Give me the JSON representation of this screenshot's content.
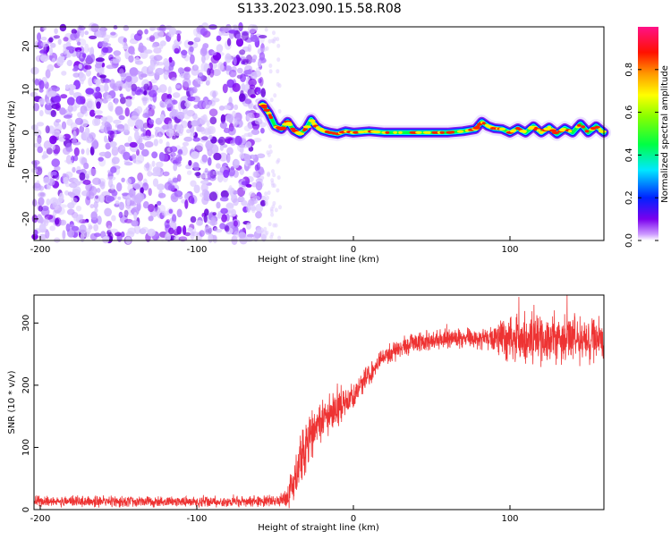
{
  "title": "S133.2023.090.15.58.R08",
  "chart_data": [
    {
      "type": "heatmap",
      "xlabel": "Height of straight line (km)",
      "ylabel": "Frequency (Hz)",
      "xlim": [
        -204,
        160
      ],
      "ylim": [
        -25,
        24.5
      ],
      "xticks": [
        -200,
        -100,
        0,
        100
      ],
      "yticks": [
        -20,
        -10,
        0,
        10,
        20
      ],
      "colorbar": {
        "label": "Normalized spectral amplitude",
        "range": [
          0,
          1
        ],
        "ticks": [
          0.0,
          0.2,
          0.4,
          0.6,
          0.8
        ],
        "tick_labels": [
          "0.0",
          "0.2",
          "0.4",
          "0.6",
          "0.8"
        ]
      },
      "noise_region_x": [
        -204,
        -57
      ],
      "signal_track": {
        "x": [
          -58,
          -54,
          -50,
          -46,
          -42,
          -38,
          -34,
          -30,
          -27,
          -24,
          -20,
          -15,
          -10,
          -5,
          0,
          10,
          20,
          30,
          40,
          50,
          60,
          70,
          78,
          82,
          86,
          90,
          95,
          100,
          105,
          110,
          115,
          120,
          125,
          130,
          135,
          140,
          145,
          150,
          155,
          160
        ],
        "freq": [
          6.5,
          4.5,
          1.5,
          0.8,
          2.5,
          0.5,
          -0.3,
          1.0,
          3.0,
          1.5,
          0.5,
          0.0,
          -0.3,
          0.3,
          0.0,
          0.3,
          0.0,
          0.0,
          0.0,
          0.0,
          0.0,
          0.3,
          0.8,
          2.5,
          1.5,
          1.0,
          0.8,
          0.0,
          1.0,
          0.0,
          1.5,
          0.0,
          1.2,
          -0.3,
          1.0,
          0.0,
          2.0,
          0.0,
          1.5,
          0.0
        ]
      }
    },
    {
      "type": "line",
      "xlabel": "Height of straight line (km)",
      "ylabel": "SNR (10 * v/v)",
      "xlim": [
        -204,
        160
      ],
      "ylim": [
        0,
        345
      ],
      "xticks": [
        -200,
        -100,
        0,
        100
      ],
      "yticks": [
        0,
        100,
        200,
        300
      ],
      "color": "#ee3333",
      "envelope": {
        "x": [
          -204,
          -60,
          -50,
          -42,
          -38,
          -34,
          -30,
          -25,
          -20,
          -15,
          -10,
          -5,
          0,
          5,
          10,
          15,
          20,
          25,
          30,
          40,
          50,
          60,
          70,
          80,
          90,
          100,
          110,
          120,
          130,
          140,
          150,
          160
        ],
        "mean": [
          13,
          13,
          14,
          18,
          45,
          85,
          105,
          125,
          140,
          155,
          165,
          172,
          185,
          200,
          215,
          232,
          245,
          252,
          260,
          268,
          272,
          273,
          275,
          275,
          275,
          273,
          273,
          275,
          272,
          275,
          273,
          270
        ],
        "noise": [
          8,
          8,
          9,
          15,
          35,
          40,
          40,
          35,
          30,
          28,
          25,
          22,
          20,
          18,
          18,
          16,
          15,
          15,
          15,
          15,
          15,
          15,
          15,
          15,
          20,
          38,
          38,
          38,
          38,
          38,
          38,
          38
        ]
      }
    }
  ]
}
